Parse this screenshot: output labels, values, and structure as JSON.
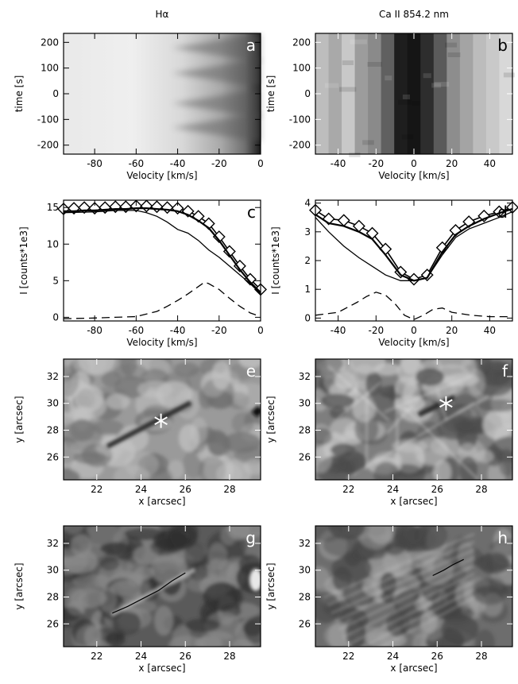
{
  "figure": {
    "col_titles": [
      "Hα",
      "Ca II 854.2 nm"
    ]
  },
  "chart_data": [
    {
      "id": "a",
      "type": "heatmap",
      "panel_letter": "a",
      "xlabel": "Velocity [km/s]",
      "ylabel": "time [s]",
      "xlim": [
        -95,
        0
      ],
      "ylim": [
        -235,
        235
      ],
      "xticks": [
        -80,
        -60,
        -40,
        -20,
        0
      ],
      "yticks": [
        -200,
        -100,
        0,
        100,
        200
      ],
      "description_values": "intensity: bright at high negative velocities, darkening toward 0 km/s with periodic dark wedges"
    },
    {
      "id": "b",
      "type": "heatmap",
      "panel_letter": "b",
      "xlabel": "Velocity [km/s]",
      "ylabel": "time [s]",
      "xlim": [
        -52,
        52
      ],
      "ylim": [
        -235,
        235
      ],
      "xticks": [
        -40,
        -20,
        0,
        20,
        40
      ],
      "yticks": [
        -200,
        -100,
        0,
        100,
        200
      ]
    },
    {
      "id": "c",
      "type": "line",
      "panel_letter": "c",
      "xlabel": "Velocity [km/s]",
      "ylabel": "I [counts*1e3]",
      "xlim": [
        -95,
        0
      ],
      "ylim": [
        -0.5,
        16
      ],
      "xticks": [
        -80,
        -60,
        -40,
        -20,
        0
      ],
      "yticks": [
        0,
        5,
        10,
        15
      ],
      "series": [
        {
          "style": "diamond",
          "x": [
            -95,
            -90,
            -85,
            -80,
            -75,
            -70,
            -65,
            -60,
            -55,
            -50,
            -45,
            -40,
            -35,
            -30,
            -25,
            -20,
            -15,
            -10,
            -5,
            0
          ],
          "y": [
            14.8,
            14.9,
            15.0,
            14.9,
            15.0,
            15.1,
            15.1,
            15.2,
            15.2,
            15.1,
            15.0,
            14.9,
            14.5,
            13.8,
            12.8,
            11.0,
            9.0,
            7.0,
            5.2,
            3.8
          ]
        },
        {
          "style": "thick",
          "x": [
            -95,
            -90,
            -85,
            -80,
            -75,
            -70,
            -65,
            -60,
            -55,
            -50,
            -45,
            -40,
            -35,
            -30,
            -25,
            -20,
            -15,
            -10,
            -5,
            0
          ],
          "y": [
            14.5,
            14.5,
            14.6,
            14.6,
            14.7,
            14.8,
            14.8,
            14.9,
            14.9,
            14.8,
            14.7,
            14.5,
            14.0,
            13.2,
            12.2,
            10.5,
            8.5,
            6.5,
            4.8,
            3.4
          ]
        },
        {
          "style": "thin",
          "x": [
            -95,
            -80,
            -70,
            -60,
            -55,
            -50,
            -45,
            -40,
            -35,
            -30,
            -25,
            -20,
            -15,
            -10,
            -5,
            0
          ],
          "y": [
            14.3,
            14.4,
            14.6,
            14.6,
            14.3,
            13.8,
            13.0,
            12.0,
            11.5,
            10.5,
            9.2,
            8.2,
            7.0,
            5.8,
            4.6,
            3.2
          ]
        },
        {
          "style": "dashed",
          "x": [
            -95,
            -80,
            -70,
            -60,
            -50,
            -45,
            -40,
            -35,
            -30,
            -27,
            -25,
            -20,
            -15,
            -10,
            -5,
            0
          ],
          "y": [
            -0.2,
            -0.1,
            0.0,
            0.1,
            0.8,
            1.5,
            2.3,
            3.2,
            4.2,
            4.8,
            4.6,
            3.8,
            2.6,
            1.5,
            0.6,
            0.1
          ]
        }
      ]
    },
    {
      "id": "d",
      "type": "line",
      "panel_letter": "d",
      "xlabel": "Velocity [km/s]",
      "ylabel": "I [counts*1e3]",
      "xlim": [
        -52,
        52
      ],
      "ylim": [
        -0.1,
        4.1
      ],
      "xticks": [
        -40,
        -20,
        0,
        20,
        40
      ],
      "yticks": [
        0,
        1,
        2,
        3,
        4
      ],
      "series": [
        {
          "style": "diamond",
          "x": [
            -52,
            -45,
            -37,
            -29,
            -22,
            -15,
            -7,
            0,
            7,
            15,
            22,
            29,
            37,
            45,
            52
          ],
          "y": [
            3.75,
            3.45,
            3.4,
            3.2,
            2.95,
            2.4,
            1.6,
            1.35,
            1.5,
            2.45,
            3.05,
            3.35,
            3.55,
            3.7,
            3.85
          ]
        },
        {
          "style": "thick",
          "x": [
            -52,
            -45,
            -37,
            -29,
            -22,
            -15,
            -7,
            0,
            7,
            15,
            22,
            29,
            37,
            45,
            52
          ],
          "y": [
            3.6,
            3.3,
            3.2,
            3.0,
            2.75,
            2.2,
            1.5,
            1.3,
            1.4,
            2.3,
            2.9,
            3.2,
            3.45,
            3.65,
            3.8
          ]
        },
        {
          "style": "thin",
          "x": [
            -52,
            -45,
            -37,
            -29,
            -22,
            -15,
            -7,
            0,
            7,
            15,
            22,
            29,
            37,
            45,
            52
          ],
          "y": [
            3.5,
            3.0,
            2.5,
            2.1,
            1.8,
            1.5,
            1.3,
            1.3,
            1.4,
            2.2,
            2.8,
            3.1,
            3.3,
            3.5,
            3.7
          ]
        },
        {
          "style": "dashed",
          "x": [
            -52,
            -40,
            -30,
            -25,
            -20,
            -15,
            -10,
            -5,
            0,
            5,
            10,
            15,
            20,
            30,
            40,
            52
          ],
          "y": [
            0.1,
            0.2,
            0.55,
            0.75,
            0.9,
            0.8,
            0.5,
            0.1,
            -0.05,
            0.1,
            0.3,
            0.35,
            0.2,
            0.1,
            0.05,
            0.05
          ]
        }
      ]
    },
    {
      "id": "e",
      "type": "heatmap",
      "panel_letter": "e",
      "xlabel": "x [arcsec]",
      "ylabel": "y [arcsec]",
      "xlim": [
        20.5,
        29.4
      ],
      "ylim": [
        24.3,
        33.3
      ],
      "xticks": [
        22,
        24,
        26,
        28
      ],
      "yticks": [
        26,
        28,
        30,
        32
      ],
      "marker": {
        "symbol": "asterisk",
        "x": 24.9,
        "y": 28.7
      }
    },
    {
      "id": "f",
      "type": "heatmap",
      "panel_letter": "f",
      "xlabel": "x [arcsec]",
      "ylabel": "y [arcsec]",
      "xlim": [
        20.5,
        29.4
      ],
      "ylim": [
        24.3,
        33.3
      ],
      "xticks": [
        22,
        24,
        26,
        28
      ],
      "yticks": [
        26,
        28,
        30,
        32
      ],
      "marker": {
        "symbol": "asterisk",
        "x": 26.4,
        "y": 30.0
      }
    },
    {
      "id": "g",
      "type": "heatmap",
      "panel_letter": "g",
      "xlabel": "x [arcsec]",
      "ylabel": "y [arcsec]",
      "xlim": [
        20.5,
        29.4
      ],
      "ylim": [
        24.3,
        33.3
      ],
      "xticks": [
        22,
        24,
        26,
        28
      ],
      "yticks": [
        26,
        28,
        30,
        32
      ],
      "trace": {
        "x": [
          22.7,
          23.4,
          24.1,
          24.8,
          25.4,
          26.0
        ],
        "y": [
          26.8,
          27.3,
          27.9,
          28.5,
          29.2,
          29.8
        ]
      }
    },
    {
      "id": "h",
      "type": "heatmap",
      "panel_letter": "h",
      "xlabel": "x [arcsec]",
      "ylabel": "y [arcsec]",
      "xlim": [
        20.5,
        29.4
      ],
      "ylim": [
        24.3,
        33.3
      ],
      "xticks": [
        22,
        24,
        26,
        28
      ],
      "yticks": [
        26,
        28,
        30,
        32
      ],
      "trace": {
        "x": [
          25.8,
          26.3,
          26.7,
          27.2
        ],
        "y": [
          29.6,
          30.0,
          30.4,
          30.8
        ]
      }
    }
  ]
}
